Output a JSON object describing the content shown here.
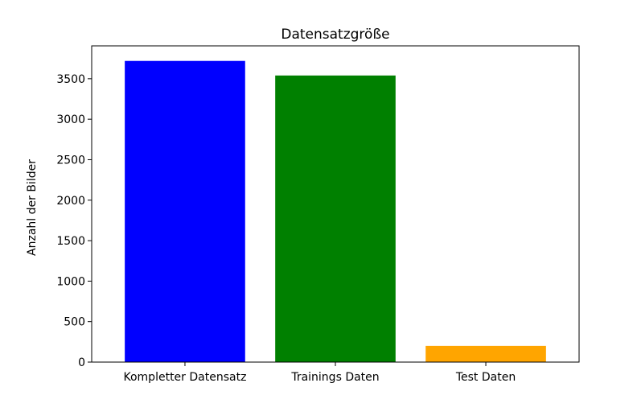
{
  "chart_data": {
    "type": "bar",
    "title": "Datensatzgröße",
    "xlabel": "",
    "ylabel": "Anzahl der Bilder",
    "categories": [
      "Kompletter Datensatz",
      "Trainings Daten",
      "Test Daten"
    ],
    "values": [
      3720,
      3540,
      200
    ],
    "colors": [
      "#0000ff",
      "#008000",
      "#ffa500"
    ],
    "ylim": [
      0,
      3906
    ],
    "yticks": [
      0,
      500,
      1000,
      1500,
      2000,
      2500,
      3000,
      3500
    ],
    "grid": false
  }
}
